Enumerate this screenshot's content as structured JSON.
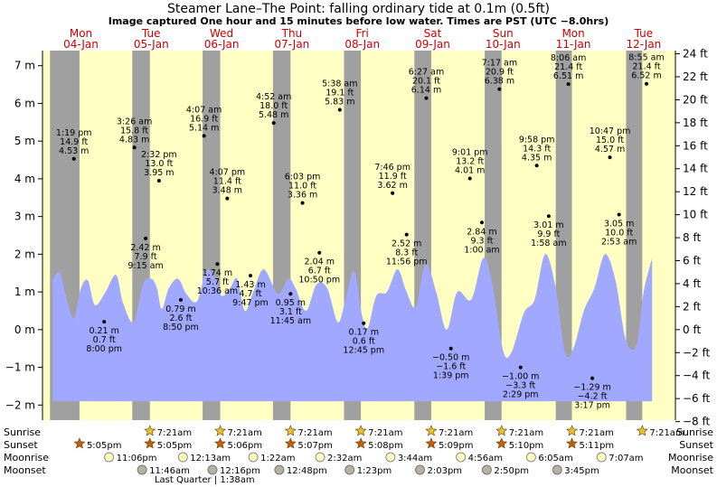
{
  "chart_data": {
    "type": "area",
    "title": "Steamer Lane–The Point: falling  ordinary tide at 0.1m (0.5ft)",
    "subtitle": "Image captured One hour and 15 minutes before low water. Times are PST (UTC −8.0hrs)",
    "y_left_unit": "m",
    "y_right_unit": "ft",
    "ylim_m": [
      -2.4,
      7.4
    ],
    "ylim_ft": [
      -8,
      24
    ],
    "left_ticks_m": [
      7,
      6,
      5,
      4,
      3,
      2,
      1,
      0,
      -1,
      -2
    ],
    "right_ticks_ft": [
      24,
      22,
      20,
      18,
      16,
      14,
      12,
      10,
      8,
      6,
      4,
      2,
      0,
      -2,
      -4,
      -6,
      -8
    ],
    "left_tick_labels": [
      "7 m",
      "6 m",
      "5 m",
      "4 m",
      "3 m",
      "2 m",
      "1 m",
      "0 m",
      "−1 m",
      "−2 m"
    ],
    "right_tick_labels": [
      "24 ft",
      "22 ft",
      "20 ft",
      "18 ft",
      "16 ft",
      "14 ft",
      "12 ft",
      "10 ft",
      "8 ft",
      "6 ft",
      "4 ft",
      "2 ft",
      "0 ft",
      "−2 ft",
      "−4 ft",
      "−6 ft",
      "−8 ft"
    ],
    "days": [
      {
        "day": "Mon",
        "date": "04-Jan",
        "x": 0
      },
      {
        "day": "Tue",
        "date": "05-Jan",
        "x": 1
      },
      {
        "day": "Wed",
        "date": "06-Jan",
        "x": 2
      },
      {
        "day": "Thu",
        "date": "07-Jan",
        "x": 3
      },
      {
        "day": "Fri",
        "date": "08-Jan",
        "x": 4
      },
      {
        "day": "Sat",
        "date": "09-Jan",
        "x": 5
      },
      {
        "day": "Sun",
        "date": "10-Jan",
        "x": 6
      },
      {
        "day": "Mon",
        "date": "11-Jan",
        "x": 7
      },
      {
        "day": "Tue",
        "date": "12-Jan",
        "x": 8
      }
    ],
    "x_range_days": [
      -0.44,
      8.72
    ],
    "night_bands_days": [
      [
        -0.44,
        -0.02
      ],
      [
        0.73,
        0.98
      ],
      [
        1.73,
        1.98
      ],
      [
        2.73,
        2.98
      ],
      [
        3.74,
        3.98
      ],
      [
        4.74,
        4.98
      ],
      [
        5.74,
        5.98
      ],
      [
        6.75,
        6.98
      ],
      [
        7.75,
        7.98
      ]
    ],
    "tide_area_range_days": [
      -0.4,
      8.12
    ],
    "tide_area_floor_m": -1.9,
    "tide_curve_m": [
      [
        -0.4,
        1.35
      ],
      [
        -0.3,
        1.5
      ],
      [
        -0.2,
        0.8
      ],
      [
        -0.1,
        0.3
      ],
      [
        0.0,
        1.1
      ],
      [
        0.1,
        1.3
      ],
      [
        0.2,
        0.65
      ],
      [
        0.35,
        1.0
      ],
      [
        0.5,
        1.45
      ],
      [
        0.6,
        0.7
      ],
      [
        0.75,
        0.2
      ],
      [
        0.88,
        1.2
      ],
      [
        1.0,
        1.35
      ],
      [
        1.08,
        1.1
      ],
      [
        1.15,
        0.55
      ],
      [
        1.25,
        1.1
      ],
      [
        1.38,
        1.35
      ],
      [
        1.5,
        0.95
      ],
      [
        1.65,
        0.75
      ],
      [
        1.78,
        1.55
      ],
      [
        1.9,
        1.4
      ],
      [
        2.0,
        0.9
      ],
      [
        2.12,
        1.1
      ],
      [
        2.22,
        1.35
      ],
      [
        2.33,
        0.5
      ],
      [
        2.45,
        1.0
      ],
      [
        2.6,
        1.6
      ],
      [
        2.8,
        0.95
      ],
      [
        2.95,
        1.35
      ],
      [
        3.05,
        1.1
      ],
      [
        3.2,
        0.5
      ],
      [
        3.35,
        1.2
      ],
      [
        3.5,
        1.1
      ],
      [
        3.65,
        0.2
      ],
      [
        3.75,
        0.7
      ],
      [
        3.88,
        1.55
      ],
      [
        4.0,
        0.35
      ],
      [
        4.08,
        0.05
      ],
      [
        4.2,
        0.9
      ],
      [
        4.35,
        1.0
      ],
      [
        4.5,
        1.6
      ],
      [
        4.62,
        1.05
      ],
      [
        4.76,
        0.6
      ],
      [
        4.9,
        1.75
      ],
      [
        5.05,
        1.0
      ],
      [
        5.2,
        0.0
      ],
      [
        5.35,
        1.0
      ],
      [
        5.55,
        0.8
      ],
      [
        5.72,
        1.9
      ],
      [
        5.85,
        1.2
      ],
      [
        6.0,
        -0.55
      ],
      [
        6.12,
        -0.6
      ],
      [
        6.3,
        0.45
      ],
      [
        6.45,
        0.8
      ],
      [
        6.6,
        2.0
      ],
      [
        6.75,
        1.1
      ],
      [
        6.88,
        -0.6
      ],
      [
        7.0,
        -0.5
      ],
      [
        7.15,
        0.5
      ],
      [
        7.3,
        1.1
      ],
      [
        7.45,
        2.0
      ],
      [
        7.6,
        1.3
      ],
      [
        7.75,
        -0.3
      ],
      [
        7.9,
        -0.4
      ],
      [
        8.0,
        1.0
      ],
      [
        8.12,
        1.9
      ]
    ],
    "tide_points": [
      {
        "x": -0.1,
        "m": 4.53,
        "labels": [
          "1:19 pm",
          "14.9 ft",
          "4.53 m"
        ],
        "pos": "above"
      },
      {
        "x": 0.33,
        "m": 0.21,
        "labels": [
          "0.21 m",
          "0.7 ft",
          "8:00 pm"
        ],
        "pos": "below"
      },
      {
        "x": 0.76,
        "m": 4.83,
        "labels": [
          "3:26 am",
          "15.8 ft",
          "4.83 m"
        ],
        "pos": "above"
      },
      {
        "x": 0.92,
        "m": 2.42,
        "labels": [
          "2.42 m",
          "7.9 ft",
          "9:15 am"
        ],
        "pos": "below"
      },
      {
        "x": 1.11,
        "m": 3.95,
        "labels": [
          "2:32 pm",
          "13.0 ft",
          "3.95 m"
        ],
        "pos": "above"
      },
      {
        "x": 1.42,
        "m": 0.79,
        "labels": [
          "0.79 m",
          "2.6 ft",
          "8:50 pm"
        ],
        "pos": "below"
      },
      {
        "x": 1.75,
        "m": 5.14,
        "labels": [
          "4:07 am",
          "16.9 ft",
          "5.14 m"
        ],
        "pos": "above"
      },
      {
        "x": 1.94,
        "m": 1.74,
        "labels": [
          "1.74 m",
          "5.7 ft",
          "10:36 am"
        ],
        "pos": "below"
      },
      {
        "x": 2.08,
        "m": 3.48,
        "labels": [
          "4:07 pm",
          "11.4 ft",
          "3.48 m"
        ],
        "pos": "above"
      },
      {
        "x": 2.41,
        "m": 1.43,
        "labels": [
          "1.43 m",
          "4.7 ft",
          "9:47 pm"
        ],
        "pos": "below"
      },
      {
        "x": 2.74,
        "m": 5.48,
        "labels": [
          "4:52 am",
          "18.0 ft",
          "5.48 m"
        ],
        "pos": "above"
      },
      {
        "x": 2.98,
        "m": 0.95,
        "labels": [
          "0.95 m",
          "3.1 ft",
          "11:45 am"
        ],
        "pos": "below"
      },
      {
        "x": 3.15,
        "m": 3.36,
        "labels": [
          "6:03 pm",
          "11.0 ft",
          "3.36 m"
        ],
        "pos": "above"
      },
      {
        "x": 3.39,
        "m": 2.04,
        "labels": [
          "2.04 m",
          "6.7 ft",
          "10:50 pm"
        ],
        "pos": "below"
      },
      {
        "x": 3.68,
        "m": 5.83,
        "labels": [
          "5:38 am",
          "19.1 ft",
          "5.83 m"
        ],
        "pos": "above"
      },
      {
        "x": 4.02,
        "m": 0.17,
        "labels": [
          "0.17 m",
          "0.6 ft",
          "12:45 pm"
        ],
        "pos": "below"
      },
      {
        "x": 4.43,
        "m": 3.62,
        "labels": [
          "7:46 pm",
          "11.9 ft",
          "3.62 m"
        ],
        "pos": "above"
      },
      {
        "x": 4.63,
        "m": 2.52,
        "labels": [
          "2.52 m",
          "8.3 ft",
          "11:56 pm"
        ],
        "pos": "below"
      },
      {
        "x": 4.91,
        "m": 6.14,
        "labels": [
          "6:27 am",
          "20.1 ft",
          "6.14 m"
        ],
        "pos": "above"
      },
      {
        "x": 5.26,
        "m": -0.5,
        "labels": [
          "−0.50 m",
          "−1.6 ft",
          "1:39 pm"
        ],
        "pos": "below"
      },
      {
        "x": 5.53,
        "m": 4.01,
        "labels": [
          "9:01 pm",
          "13.2 ft",
          "4.01 m"
        ],
        "pos": "above"
      },
      {
        "x": 5.7,
        "m": 2.84,
        "labels": [
          "2.84 m",
          "9.3 ft",
          "1:00 am"
        ],
        "pos": "below"
      },
      {
        "x": 5.95,
        "m": 6.38,
        "labels": [
          "7:17 am",
          "20.9 ft",
          "6.38 m"
        ],
        "pos": "above"
      },
      {
        "x": 6.25,
        "m": -1.0,
        "labels": [
          "−1.00 m",
          "−3.3 ft",
          "2:29 pm"
        ],
        "pos": "below"
      },
      {
        "x": 6.48,
        "m": 4.35,
        "labels": [
          "9:58 pm",
          "14.3 ft",
          "4.35 m"
        ],
        "pos": "above"
      },
      {
        "x": 6.65,
        "m": 3.01,
        "labels": [
          "3.01 m",
          "9.9 ft",
          "1:58 am"
        ],
        "pos": "below"
      },
      {
        "x": 6.93,
        "m": 6.51,
        "labels": [
          "8:06 am",
          "21.4 ft",
          "6.51 m"
        ],
        "pos": "above"
      },
      {
        "x": 7.27,
        "m": -1.29,
        "labels": [
          "−1.29 m",
          "−4.2 ft",
          "3:17 pm"
        ],
        "pos": "below"
      },
      {
        "x": 7.52,
        "m": 4.57,
        "labels": [
          "10:47 pm",
          "15.0 ft",
          "4.57 m"
        ],
        "pos": "above"
      },
      {
        "x": 7.65,
        "m": 3.05,
        "labels": [
          "3.05 m",
          "10.0 ft",
          "2:53 am"
        ],
        "pos": "below"
      },
      {
        "x": 8.04,
        "m": 6.52,
        "labels": [
          "8:55 am",
          "21.4 ft",
          "6.52 m"
        ],
        "pos": "above"
      }
    ],
    "row_labels": {
      "sunrise": "Sunrise",
      "sunset": "Sunset",
      "moonrise": "Moonrise",
      "moonset": "Moonset"
    },
    "sunrise": [
      {
        "x": 0.98,
        "label": "7:21am"
      },
      {
        "x": 1.98,
        "label": "7:21am"
      },
      {
        "x": 2.98,
        "label": "7:21am"
      },
      {
        "x": 3.98,
        "label": "7:21am"
      },
      {
        "x": 4.98,
        "label": "7:21am"
      },
      {
        "x": 5.98,
        "label": "7:21am"
      },
      {
        "x": 6.98,
        "label": "7:21am"
      },
      {
        "x": 7.98,
        "label": "7:21am"
      }
    ],
    "sunset": [
      {
        "x": -0.02,
        "label": "5:05pm"
      },
      {
        "x": 0.98,
        "label": "5:05pm"
      },
      {
        "x": 1.98,
        "label": "5:06pm"
      },
      {
        "x": 2.98,
        "label": "5:07pm"
      },
      {
        "x": 3.98,
        "label": "5:08pm"
      },
      {
        "x": 4.98,
        "label": "5:09pm"
      },
      {
        "x": 5.98,
        "label": "5:10pm"
      },
      {
        "x": 6.98,
        "label": "5:11pm"
      }
    ],
    "moonrise": [
      {
        "x": 0.4,
        "label": "11:06pm"
      },
      {
        "x": 1.45,
        "label": "12:13am"
      },
      {
        "x": 2.45,
        "label": "1:22am"
      },
      {
        "x": 3.4,
        "label": "2:32am"
      },
      {
        "x": 4.4,
        "label": "3:44am"
      },
      {
        "x": 5.4,
        "label": "4:56am"
      },
      {
        "x": 6.4,
        "label": "6:05am"
      },
      {
        "x": 7.4,
        "label": "7:07am"
      }
    ],
    "moonset": [
      {
        "x": 0.87,
        "label": "11:46am"
      },
      {
        "x": 1.87,
        "label": "12:16pm"
      },
      {
        "x": 2.82,
        "label": "12:48pm"
      },
      {
        "x": 3.82,
        "label": "1:23pm"
      },
      {
        "x": 4.82,
        "label": "2:03pm"
      },
      {
        "x": 5.77,
        "label": "2:50pm"
      },
      {
        "x": 6.77,
        "label": "3:45pm"
      }
    ],
    "moon_phase": {
      "x": 1.15,
      "label": "Last Quarter | 1:38am"
    },
    "colors": {
      "day_bg": "#ffffc4",
      "night_bg": "#a0a0a0",
      "tide_fill": "#a0a8ff",
      "day_label": "#cc0000",
      "text": "#000000",
      "sunrise_star": "#e8c030",
      "sunset_star": "#c06010",
      "moonrise_fill": "#ffffc0",
      "moonset_fill": "#b8b0a0"
    }
  }
}
